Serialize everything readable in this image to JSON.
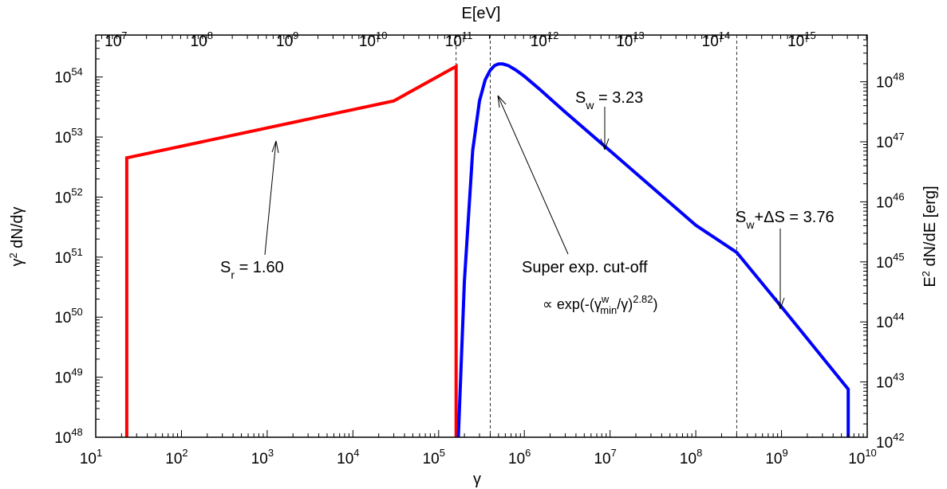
{
  "chart_data": {
    "type": "line",
    "xlabel": "γ",
    "ylabel": "γ2 dN/dγ",
    "x2label": "E[eV]",
    "y2label": "E2 dN/dE [erg]",
    "xscale": "log",
    "yscale": "log",
    "xlim": [
      10.0,
      10000000000.0
    ],
    "ylim": [
      1e+48,
      5e+54
    ],
    "x2lim_eV": [
      5110000.0,
      5110000000000000.0
    ],
    "y2lim_erg": [
      1.2e+42,
      6e+48
    ],
    "x_ticks": [
      {
        "base": "10",
        "exp": "1"
      },
      {
        "base": "10",
        "exp": "2"
      },
      {
        "base": "10",
        "exp": "3"
      },
      {
        "base": "10",
        "exp": "4"
      },
      {
        "base": "10",
        "exp": "5"
      },
      {
        "base": "10",
        "exp": "6"
      },
      {
        "base": "10",
        "exp": "7"
      },
      {
        "base": "10",
        "exp": "8"
      },
      {
        "base": "10",
        "exp": "9"
      },
      {
        "base": "10",
        "exp": "10"
      }
    ],
    "y_ticks": [
      {
        "base": "10",
        "exp": "48"
      },
      {
        "base": "10",
        "exp": "49"
      },
      {
        "base": "10",
        "exp": "50"
      },
      {
        "base": "10",
        "exp": "51"
      },
      {
        "base": "10",
        "exp": "52"
      },
      {
        "base": "10",
        "exp": "53"
      },
      {
        "base": "10",
        "exp": "54"
      }
    ],
    "x2_ticks": [
      {
        "base": "10",
        "exp": "7"
      },
      {
        "base": "10",
        "exp": "8"
      },
      {
        "base": "10",
        "exp": "9"
      },
      {
        "base": "10",
        "exp": "10"
      },
      {
        "base": "10",
        "exp": "11"
      },
      {
        "base": "10",
        "exp": "12"
      },
      {
        "base": "10",
        "exp": "13"
      },
      {
        "base": "10",
        "exp": "14"
      },
      {
        "base": "10",
        "exp": "15"
      }
    ],
    "y2_ticks": [
      {
        "base": "10",
        "exp": "42"
      },
      {
        "base": "10",
        "exp": "43"
      },
      {
        "base": "10",
        "exp": "44"
      },
      {
        "base": "10",
        "exp": "45"
      },
      {
        "base": "10",
        "exp": "46"
      },
      {
        "base": "10",
        "exp": "47"
      },
      {
        "base": "10",
        "exp": "48"
      }
    ],
    "series": [
      {
        "color": "#ff0000",
        "points": [
          [
            23,
            1e+48
          ],
          [
            23,
            4.5e+52
          ],
          [
            30000.0,
            4e+53
          ],
          [
            160000.0,
            1.5e+54
          ],
          [
            160000.0,
            1e+48
          ]
        ]
      },
      {
        "color": "#0000ff",
        "points": [
          [
            170000.0,
            1e+48
          ],
          [
            200000.0,
            4e+50
          ],
          [
            250000.0,
            6e+52
          ],
          [
            300000.0,
            4e+53
          ],
          [
            350000.0,
            9e+53
          ],
          [
            400000.0,
            1.3e+54
          ],
          [
            450000.0,
            1.55e+54
          ],
          [
            500000.0,
            1.65e+54
          ],
          [
            560000.0,
            1.65e+54
          ],
          [
            650000.0,
            1.55e+54
          ],
          [
            800000.0,
            1.3e+54
          ],
          [
            1000000.0,
            1.03e+54
          ],
          [
            1500000.0,
            6.3e+53
          ],
          [
            3000000.0,
            2.6e+53
          ],
          [
            10000000.0,
            5.9e+52
          ],
          [
            100000000.0,
            3.4e+51
          ],
          [
            300000000.0,
            1.2e+51
          ],
          [
            1000000000.0,
            1.48e+50
          ],
          [
            6000000000.0,
            6.3e+48
          ],
          [
            6000000000.0,
            1e+48
          ]
        ]
      }
    ],
    "vlines_x": [
      160000.0,
      400000.0,
      300000000.0
    ],
    "annotations": [
      {
        "id": "s_r",
        "base": "S",
        "sub": "r",
        "value": " = 1.60"
      },
      {
        "id": "s_w",
        "base": "S",
        "sub": "w",
        "value": " = 3.23"
      },
      {
        "id": "s_w_ds",
        "base": "S",
        "sub": "w",
        "value": "+ΔS = 3.76"
      },
      {
        "id": "cutoff",
        "line1": "Super exp. cut-off",
        "line2_pre": "∝ exp(-(γ",
        "sup": "w",
        "sub": "min",
        "line2_post": "/γ)",
        "exp": "2.82",
        "close": ")"
      }
    ]
  }
}
